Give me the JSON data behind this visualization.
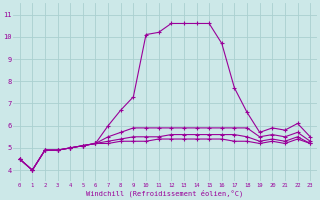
{
  "xlabel": "Windchill (Refroidissement éolien,°C)",
  "background_color": "#cce8e8",
  "grid_color": "#aad0d0",
  "line_color": "#990099",
  "x": [
    0,
    1,
    2,
    3,
    4,
    5,
    6,
    7,
    8,
    9,
    10,
    11,
    12,
    13,
    14,
    15,
    16,
    17,
    18,
    19,
    20,
    21,
    22,
    23
  ],
  "line1": [
    4.5,
    4.0,
    4.9,
    4.9,
    5.0,
    5.1,
    5.2,
    6.0,
    6.7,
    7.3,
    10.1,
    10.2,
    10.6,
    10.6,
    10.6,
    10.6,
    9.7,
    7.7,
    6.6,
    5.7,
    5.9,
    5.8,
    6.1,
    5.5
  ],
  "line2": [
    4.5,
    4.0,
    4.9,
    4.9,
    5.0,
    5.1,
    5.2,
    5.5,
    5.7,
    5.9,
    5.9,
    5.9,
    5.9,
    5.9,
    5.9,
    5.9,
    5.9,
    5.9,
    5.9,
    5.5,
    5.6,
    5.5,
    5.7,
    5.3
  ],
  "line3": [
    4.5,
    4.0,
    4.9,
    4.9,
    5.0,
    5.1,
    5.2,
    5.3,
    5.4,
    5.5,
    5.5,
    5.5,
    5.6,
    5.6,
    5.6,
    5.6,
    5.6,
    5.6,
    5.5,
    5.3,
    5.4,
    5.3,
    5.5,
    5.2
  ],
  "line4": [
    4.5,
    4.0,
    4.9,
    4.9,
    5.0,
    5.1,
    5.2,
    5.2,
    5.3,
    5.3,
    5.3,
    5.4,
    5.4,
    5.4,
    5.4,
    5.4,
    5.4,
    5.3,
    5.3,
    5.2,
    5.3,
    5.2,
    5.4,
    5.2
  ],
  "ylim": [
    3.5,
    11.5
  ],
  "xlim": [
    -0.5,
    23.5
  ],
  "yticks": [
    4,
    5,
    6,
    7,
    8,
    9,
    10,
    11
  ],
  "xticks": [
    0,
    1,
    2,
    3,
    4,
    5,
    6,
    7,
    8,
    9,
    10,
    11,
    12,
    13,
    14,
    15,
    16,
    17,
    18,
    19,
    20,
    21,
    22,
    23
  ]
}
